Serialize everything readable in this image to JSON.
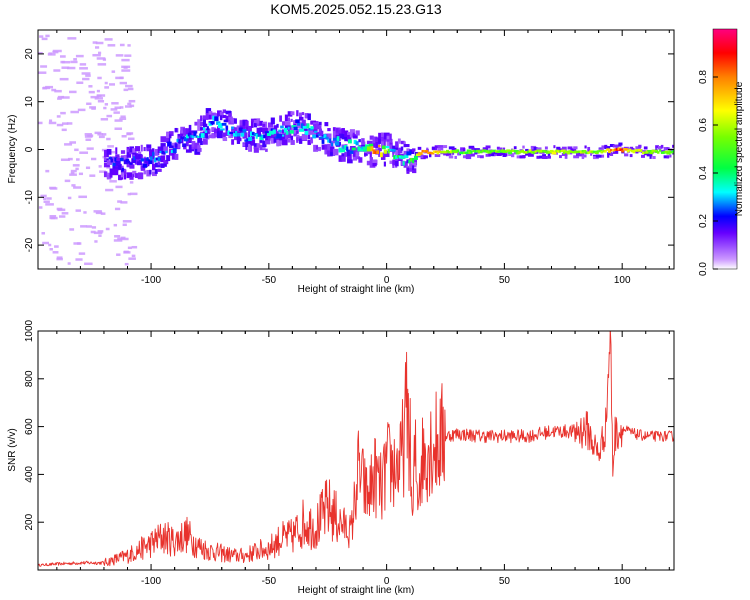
{
  "title": "KOM5.2025.052.15.23.G13",
  "colorbar": {
    "label": "Normalized spectral amplitude",
    "ticks": [
      0.0,
      0.2,
      0.4,
      0.6,
      0.8
    ],
    "tick_labels": [
      "0.0",
      "0.2",
      "0.4",
      "0.6",
      "0.8"
    ],
    "range": [
      0,
      1
    ]
  },
  "chart_data": [
    {
      "type": "heatmap",
      "xlabel": "Height of straight line (km)",
      "ylabel": "Frequency (Hz)",
      "xlim": [
        -148,
        122
      ],
      "ylim": [
        -25,
        25
      ],
      "xticks": [
        -100,
        -50,
        0,
        50,
        100
      ],
      "xtick_labels": [
        "-100",
        "-50",
        "0",
        "50",
        "100"
      ],
      "yticks": [
        -20,
        -10,
        0,
        10,
        20
      ],
      "ytick_labels": [
        "-20",
        "-10",
        "0",
        "10",
        "20"
      ],
      "ridge": [
        {
          "x": -110,
          "freq": -3,
          "amp": 0.22
        },
        {
          "x": -100,
          "freq": -2,
          "amp": 0.28
        },
        {
          "x": -90,
          "freq": 1,
          "amp": 0.3
        },
        {
          "x": -80,
          "freq": 3,
          "amp": 0.32
        },
        {
          "x": -75,
          "freq": 6,
          "amp": 0.3
        },
        {
          "x": -60,
          "freq": 3,
          "amp": 0.32
        },
        {
          "x": -50,
          "freq": 3,
          "amp": 0.34
        },
        {
          "x": -38,
          "freq": 5,
          "amp": 0.36
        },
        {
          "x": -30,
          "freq": 3,
          "amp": 0.34
        },
        {
          "x": -20,
          "freq": 1,
          "amp": 0.36
        },
        {
          "x": -10,
          "freq": 0,
          "amp": 0.4
        },
        {
          "x": -5,
          "freq": 0,
          "amp": 0.85
        },
        {
          "x": 0,
          "freq": 0,
          "amp": 0.5
        },
        {
          "x": 8,
          "freq": -2,
          "amp": 0.35
        },
        {
          "x": 15,
          "freq": -0.5,
          "amp": 0.9
        },
        {
          "x": 30,
          "freq": -0.5,
          "amp": 0.5
        },
        {
          "x": 50,
          "freq": -0.5,
          "amp": 0.55
        },
        {
          "x": 70,
          "freq": -0.5,
          "amp": 0.6
        },
        {
          "x": 90,
          "freq": -0.5,
          "amp": 0.55
        },
        {
          "x": 97,
          "freq": 0,
          "amp": 0.85
        },
        {
          "x": 110,
          "freq": -0.5,
          "amp": 0.55
        },
        {
          "x": 122,
          "freq": -0.5,
          "amp": 0.5
        }
      ]
    },
    {
      "type": "line",
      "xlabel": "Height of straight line (km)",
      "ylabel": "SNR (v/v)",
      "xlim": [
        -148,
        122
      ],
      "ylim": [
        0,
        1000
      ],
      "xticks": [
        -100,
        -50,
        0,
        50,
        100
      ],
      "xtick_labels": [
        "-100",
        "-50",
        "0",
        "50",
        "100"
      ],
      "yticks": [
        200,
        400,
        600,
        800,
        1000
      ],
      "ytick_labels": [
        "200",
        "400",
        "600",
        "800",
        "1000"
      ],
      "series": [
        {
          "color": "#e8322c",
          "x": [
            -148,
            -140,
            -130,
            -120,
            -110,
            -100,
            -95,
            -90,
            -85,
            -80,
            -75,
            -70,
            -65,
            -60,
            -55,
            -50,
            -45,
            -40,
            -35,
            -30,
            -25,
            -20,
            -15,
            -12,
            -10,
            -8,
            -5,
            -2,
            0,
            3,
            6,
            9,
            10,
            11,
            12,
            13,
            15,
            18,
            20,
            25,
            30,
            40,
            50,
            60,
            70,
            80,
            85,
            90,
            93,
            95,
            96,
            97,
            100,
            105,
            110,
            115,
            122
          ],
          "y": [
            20,
            25,
            30,
            30,
            60,
            110,
            140,
            120,
            150,
            100,
            80,
            70,
            60,
            60,
            80,
            90,
            130,
            140,
            200,
            180,
            260,
            200,
            160,
            420,
            360,
            300,
            400,
            330,
            440,
            430,
            440,
            700,
            500,
            180,
            500,
            330,
            460,
            530,
            520,
            560,
            570,
            560,
            560,
            560,
            580,
            580,
            590,
            480,
            600,
            1000,
            420,
            570,
            590,
            570,
            560,
            560,
            560
          ]
        }
      ]
    }
  ]
}
